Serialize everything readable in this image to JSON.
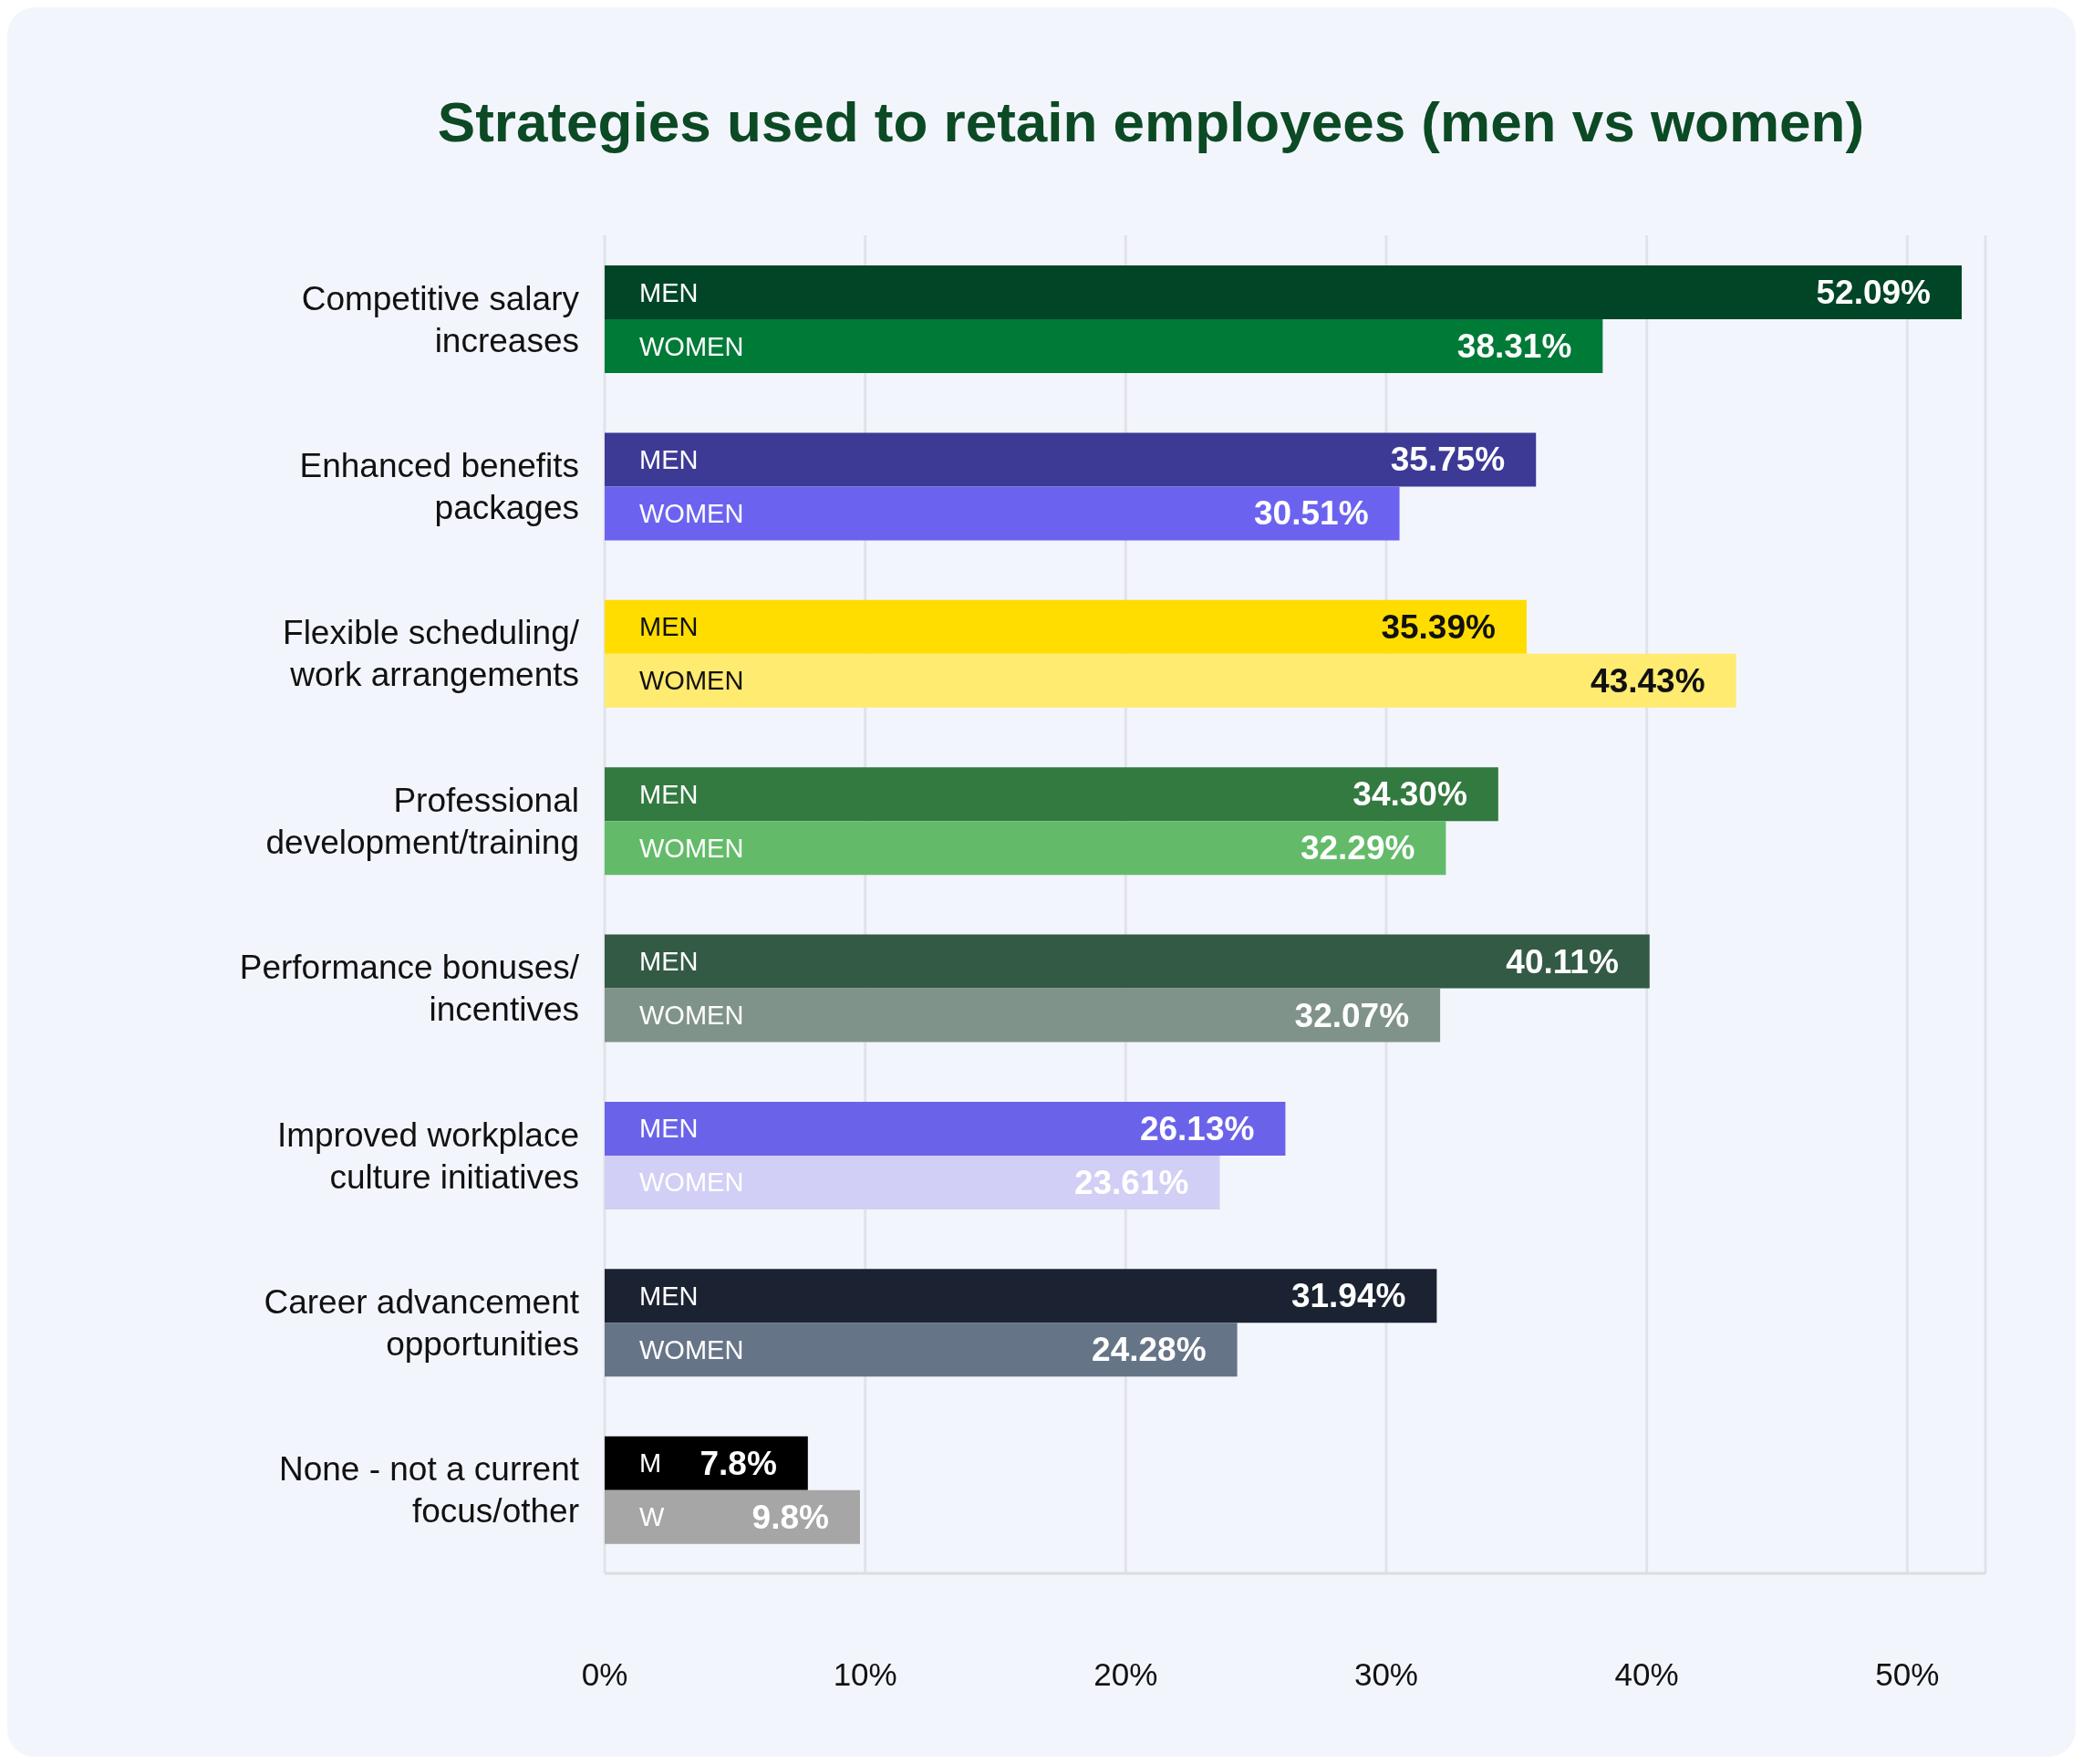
{
  "chart_data": {
    "type": "bar",
    "orientation": "horizontal",
    "title": "Strategies used to retain employees (men vs women)",
    "categories": [
      "Competitive salary increases",
      "Enhanced benefits packages",
      "Flexible scheduling/work arrangements",
      "Professional development/training",
      "Performance bonuses/incentives",
      "Improved workplace culture initiatives",
      "Career advancement opportunities",
      "None - not a current focus/other"
    ],
    "series": [
      {
        "values": [
          52.09,
          35.75,
          35.39,
          34.3,
          40.11,
          26.13,
          31.94,
          7.8
        ],
        "colors": [
          "#004526",
          "#3d3a96",
          "#ffdd00",
          "#327a3f",
          "#335a45",
          "#6a63ea",
          "#1b2332",
          "#000000"
        ],
        "value_labels": [
          "52.09%",
          "35.75%",
          "35.39%",
          "34.30%",
          "40.11%",
          "26.13%",
          "31.94%",
          "7.8%"
        ]
      },
      {
        "values": [
          38.31,
          30.51,
          43.43,
          32.29,
          32.07,
          23.61,
          24.28,
          9.8
        ],
        "colors": [
          "#007a37",
          "#6b63f0",
          "#ffeb70",
          "#63bb6a",
          "#80938a",
          "#d1cff5",
          "#667487",
          "#a6a6a6"
        ],
        "value_labels": [
          "38.31%",
          "30.51%",
          "43.43%",
          "32.29%",
          "32.07%",
          "23.61%",
          "24.28%",
          "9.8%"
        ]
      }
    ],
    "annotations": [
      {
        "text": "MEN",
        "y": "Competitive salary increases"
      },
      {
        "text": "WOMEN",
        "y": "Competitive salary increases"
      },
      {
        "text": "MEN",
        "y": "Enhanced benefits packages"
      },
      {
        "text": "WOMEN",
        "y": "Enhanced benefits packages"
      },
      {
        "text": "MEN",
        "y": "Flexible scheduling/work arrangements"
      },
      {
        "text": "WOMEN",
        "y": "Flexible scheduling/work arrangements"
      },
      {
        "text": "MEN",
        "y": "Professional development/training"
      },
      {
        "text": "WOMEN",
        "y": "Professional development/training"
      },
      {
        "text": "MEN",
        "y": "Performance bonuses/incentives"
      },
      {
        "text": "WOMEN",
        "y": "Performance bonuses/incentives"
      },
      {
        "text": "MEN",
        "y": "Improved workplace culture initiatives"
      },
      {
        "text": "WOMEN",
        "y": "Improved workplace culture initiatives"
      },
      {
        "text": "MEN",
        "y": "Career advancement opportunities"
      },
      {
        "text": "WOMEN",
        "y": "Career advancement opportunities"
      },
      {
        "text": "M",
        "y": "None - not a current focus/other"
      },
      {
        "text": "W",
        "y": "None - not a current focus/other"
      }
    ],
    "xlim": [
      0,
      53
    ],
    "xticks": [
      {
        "value": 0,
        "label": "0%"
      },
      {
        "value": 10,
        "label": "10%"
      },
      {
        "value": 20,
        "label": "20%"
      },
      {
        "value": 30,
        "label": "30%"
      },
      {
        "value": 40,
        "label": "40%"
      },
      {
        "value": 50,
        "label": "50%"
      }
    ],
    "grid": "x"
  }
}
